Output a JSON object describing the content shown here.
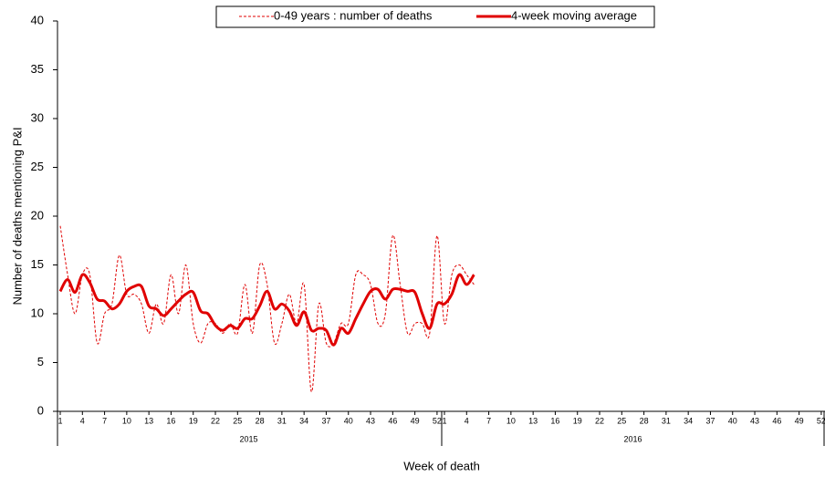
{
  "chart_data": {
    "type": "line",
    "y_label": "Number of deaths mentioning P&I",
    "x_label": "Week of death",
    "year_labels": [
      "2015",
      "2016"
    ],
    "categories": [
      1,
      null,
      null,
      4,
      null,
      null,
      7,
      null,
      null,
      10,
      null,
      null,
      13,
      null,
      null,
      16,
      null,
      null,
      19,
      null,
      null,
      22,
      null,
      null,
      25,
      null,
      null,
      28,
      null,
      null,
      31,
      null,
      null,
      34,
      null,
      null,
      37,
      null,
      null,
      40,
      null,
      null,
      43,
      null,
      null,
      46,
      null,
      null,
      49,
      null,
      null,
      52,
      1,
      null,
      null,
      4,
      null,
      null,
      7,
      null,
      null,
      10,
      null,
      null,
      13,
      null,
      null,
      16,
      null,
      null,
      19,
      null,
      null,
      22,
      null,
      null,
      25,
      null,
      null,
      28,
      null,
      null,
      31,
      null,
      null,
      34,
      null,
      null,
      37,
      null,
      null,
      40,
      null,
      null,
      43,
      null,
      null,
      46,
      null,
      null,
      49,
      null,
      null,
      52
    ],
    "series": [
      {
        "name": "0-49 years : number of deaths",
        "color": "#e00000",
        "dashed": true,
        "width": 1,
        "values": [
          19,
          14,
          10,
          14,
          14,
          7,
          10,
          11,
          16,
          12,
          12,
          11,
          8,
          11,
          9,
          14,
          10,
          15,
          9,
          7,
          9,
          9,
          8,
          9,
          8,
          13,
          8,
          15,
          13,
          7,
          9,
          12,
          9,
          13,
          2,
          11,
          7,
          7,
          9,
          9,
          14,
          14,
          13,
          9,
          10,
          18,
          13,
          8,
          9,
          9,
          8,
          18,
          9,
          14,
          15,
          14,
          13,
          null,
          null,
          null,
          null,
          null,
          null,
          null,
          null,
          null,
          null,
          null,
          null,
          null,
          null,
          null,
          null,
          null,
          null,
          null,
          null,
          null,
          null,
          null,
          null,
          null,
          null,
          null,
          null,
          null,
          null,
          null,
          null,
          null,
          null,
          null,
          null,
          null,
          null,
          null,
          null,
          null,
          null,
          null,
          null,
          null,
          null,
          null
        ]
      },
      {
        "name": "4-week moving average",
        "color": "#e00000",
        "dashed": false,
        "width": 3,
        "values": [
          12.3,
          13.5,
          12.2,
          14,
          13.2,
          11.5,
          11.3,
          10.5,
          11,
          12.3,
          12.8,
          12.8,
          10.8,
          10.5,
          9.8,
          10.5,
          11.3,
          12,
          12.2,
          10.3,
          10,
          8.8,
          8.3,
          8.8,
          8.5,
          9.5,
          9.5,
          10.8,
          12.3,
          10.5,
          11,
          10.3,
          8.8,
          10.2,
          8.3,
          8.5,
          8.3,
          6.8,
          8.5,
          8,
          9.5,
          11,
          12.3,
          12.5,
          11.5,
          12.5,
          12.5,
          12.3,
          12.2,
          10,
          8.5,
          11,
          11,
          12,
          14,
          13,
          14,
          null,
          null,
          null,
          null,
          null,
          null,
          null,
          null,
          null,
          null,
          null,
          null,
          null,
          null,
          null,
          null,
          null,
          null,
          null,
          null,
          null,
          null,
          null,
          null,
          null,
          null,
          null,
          null,
          null,
          null,
          null,
          null,
          null,
          null,
          null,
          null,
          null,
          null,
          null,
          null,
          null,
          null,
          null,
          null,
          null,
          null,
          null
        ]
      }
    ],
    "ylim": [
      0,
      40
    ],
    "yticks": [
      0,
      5,
      10,
      15,
      20,
      25,
      30,
      35,
      40
    ],
    "legend": "top"
  }
}
